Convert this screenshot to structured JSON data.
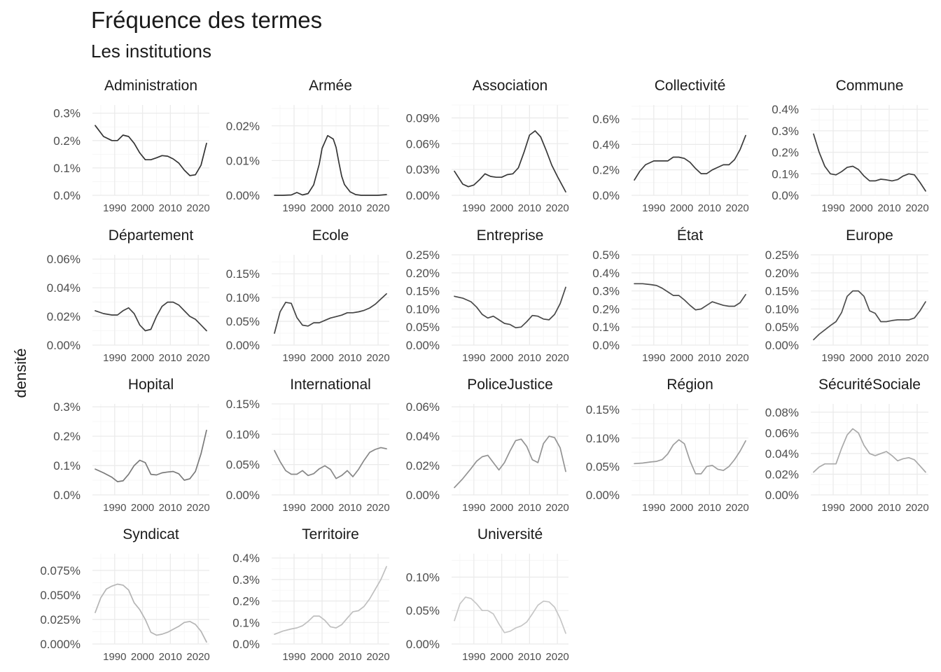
{
  "title": "Fréquence des termes",
  "subtitle": "Les institutions",
  "ylabel": "densité",
  "chart_data": {
    "type": "line",
    "title": "Fréquence des termes",
    "subtitle": "Les institutions",
    "xlabel": "",
    "ylabel": "densité",
    "xlim": [
      1982,
      2024
    ],
    "x_ticks": [
      1990,
      2000,
      2010,
      2020
    ],
    "grid": true,
    "legend": "none",
    "panels": [
      {
        "name": "Administration",
        "color": "#333333",
        "y_ticks": [
          0,
          0.1,
          0.2,
          0.3
        ],
        "y_tick_labels": [
          "0.0%",
          "0.1%",
          "0.2%",
          "0.3%"
        ],
        "ylim": [
          0,
          0.33
        ],
        "x": [
          1983,
          1986,
          1989,
          1991,
          1993,
          1995,
          1997,
          1999,
          2001,
          2003,
          2005,
          2007,
          2009,
          2011,
          2013,
          2015,
          2017,
          2019,
          2021,
          2023
        ],
        "y": [
          0.255,
          0.215,
          0.2,
          0.2,
          0.22,
          0.215,
          0.19,
          0.155,
          0.13,
          0.13,
          0.137,
          0.145,
          0.143,
          0.133,
          0.118,
          0.092,
          0.072,
          0.075,
          0.11,
          0.19
        ]
      },
      {
        "name": "Armée",
        "color": "#353535",
        "y_ticks": [
          0,
          0.01,
          0.02
        ],
        "y_tick_labels": [
          "0.00%",
          "0.01%",
          "0.02%"
        ],
        "ylim": [
          0,
          0.026
        ],
        "x": [
          1983,
          1986,
          1989,
          1991,
          1993,
          1995,
          1997,
          1999,
          2000,
          2002,
          2004,
          2005,
          2006,
          2007,
          2008,
          2010,
          2012,
          2014,
          2016,
          2018,
          2020,
          2023
        ],
        "y": [
          0,
          0,
          0.0001,
          0.0008,
          0.0001,
          0.0005,
          0.003,
          0.009,
          0.0135,
          0.0172,
          0.0162,
          0.0138,
          0.0095,
          0.0055,
          0.0031,
          0.001,
          0.0002,
          0,
          0,
          0,
          0,
          0.0002
        ]
      },
      {
        "name": "Association",
        "color": "#383838",
        "y_ticks": [
          0,
          0.03,
          0.06,
          0.09
        ],
        "y_tick_labels": [
          "0.00%",
          "0.03%",
          "0.06%",
          "0.09%"
        ],
        "ylim": [
          0,
          0.105
        ],
        "x": [
          1983,
          1986,
          1988,
          1990,
          1992,
          1994,
          1996,
          1998,
          2000,
          2002,
          2004,
          2006,
          2008,
          2010,
          2012,
          2014,
          2016,
          2018,
          2020,
          2023
        ],
        "y": [
          0.028,
          0.013,
          0.01,
          0.012,
          0.018,
          0.025,
          0.022,
          0.021,
          0.021,
          0.024,
          0.025,
          0.032,
          0.05,
          0.07,
          0.075,
          0.068,
          0.052,
          0.035,
          0.022,
          0.004
        ]
      },
      {
        "name": "Collectivité",
        "color": "#3b3b3b",
        "y_ticks": [
          0,
          0.2,
          0.4,
          0.6
        ],
        "y_tick_labels": [
          "0.0%",
          "0.2%",
          "0.4%",
          "0.6%"
        ],
        "ylim": [
          0,
          0.71
        ],
        "x": [
          1983,
          1985,
          1987,
          1990,
          1993,
          1995,
          1997,
          1999,
          2001,
          2003,
          2005,
          2007,
          2009,
          2011,
          2013,
          2015,
          2017,
          2019,
          2021,
          2023
        ],
        "y": [
          0.12,
          0.19,
          0.24,
          0.27,
          0.27,
          0.27,
          0.3,
          0.3,
          0.29,
          0.26,
          0.21,
          0.17,
          0.17,
          0.2,
          0.22,
          0.24,
          0.24,
          0.28,
          0.36,
          0.47
        ]
      },
      {
        "name": "Commune",
        "color": "#3e3e3e",
        "y_ticks": [
          0,
          0.1,
          0.2,
          0.3,
          0.4
        ],
        "y_tick_labels": [
          "0.0%",
          "0.1%",
          "0.2%",
          "0.3%",
          "0.4%"
        ],
        "ylim": [
          0,
          0.42
        ],
        "x": [
          1983,
          1985,
          1987,
          1989,
          1991,
          1993,
          1995,
          1997,
          1999,
          2001,
          2003,
          2005,
          2007,
          2009,
          2011,
          2013,
          2015,
          2017,
          2019,
          2021,
          2023
        ],
        "y": [
          0.285,
          0.2,
          0.135,
          0.1,
          0.095,
          0.11,
          0.13,
          0.135,
          0.12,
          0.09,
          0.067,
          0.067,
          0.075,
          0.072,
          0.067,
          0.073,
          0.09,
          0.1,
          0.095,
          0.06,
          0.02
        ]
      },
      {
        "name": "Département",
        "color": "#414141",
        "y_ticks": [
          0,
          0.02,
          0.04,
          0.06
        ],
        "y_tick_labels": [
          "0.00%",
          "0.02%",
          "0.04%",
          "0.06%"
        ],
        "ylim": [
          0,
          0.063
        ],
        "x": [
          1983,
          1986,
          1989,
          1991,
          1993,
          1995,
          1997,
          1999,
          2001,
          2003,
          2005,
          2007,
          2009,
          2011,
          2013,
          2015,
          2017,
          2019,
          2021,
          2023
        ],
        "y": [
          0.024,
          0.022,
          0.021,
          0.021,
          0.024,
          0.026,
          0.022,
          0.014,
          0.01,
          0.011,
          0.02,
          0.027,
          0.03,
          0.03,
          0.028,
          0.024,
          0.02,
          0.018,
          0.014,
          0.01
        ]
      },
      {
        "name": "Ecole",
        "color": "#444444",
        "y_ticks": [
          0,
          0.05,
          0.1,
          0.15
        ],
        "y_tick_labels": [
          "0.00%",
          "0.05%",
          "0.10%",
          "0.15%"
        ],
        "ylim": [
          0,
          0.19
        ],
        "x": [
          1983,
          1985,
          1987,
          1989,
          1991,
          1993,
          1995,
          1997,
          1999,
          2001,
          2003,
          2005,
          2007,
          2009,
          2011,
          2013,
          2015,
          2017,
          2019,
          2021,
          2023
        ],
        "y": [
          0.025,
          0.07,
          0.09,
          0.088,
          0.058,
          0.042,
          0.04,
          0.047,
          0.047,
          0.052,
          0.057,
          0.06,
          0.063,
          0.068,
          0.068,
          0.07,
          0.073,
          0.078,
          0.086,
          0.097,
          0.108
        ]
      },
      {
        "name": "Entreprise",
        "color": "#484848",
        "y_ticks": [
          0,
          0.05,
          0.1,
          0.15,
          0.2,
          0.25
        ],
        "y_tick_labels": [
          "0.00%",
          "0.05%",
          "0.10%",
          "0.15%",
          "0.20%",
          "0.25%"
        ],
        "ylim": [
          0,
          0.25
        ],
        "x": [
          1983,
          1986,
          1989,
          1991,
          1993,
          1995,
          1997,
          1999,
          2001,
          2003,
          2005,
          2007,
          2009,
          2011,
          2013,
          2015,
          2017,
          2019,
          2021,
          2023
        ],
        "y": [
          0.135,
          0.13,
          0.12,
          0.105,
          0.085,
          0.075,
          0.08,
          0.07,
          0.06,
          0.057,
          0.048,
          0.05,
          0.065,
          0.082,
          0.08,
          0.072,
          0.07,
          0.085,
          0.115,
          0.16
        ]
      },
      {
        "name": "État",
        "color": "#4b4b4b",
        "y_ticks": [
          0,
          0.1,
          0.2,
          0.3,
          0.4,
          0.5
        ],
        "y_tick_labels": [
          "0.0%",
          "0.1%",
          "0.2%",
          "0.3%",
          "0.4%",
          "0.5%"
        ],
        "ylim": [
          0,
          0.5
        ],
        "x": [
          1983,
          1986,
          1989,
          1991,
          1993,
          1995,
          1997,
          1999,
          2001,
          2003,
          2005,
          2007,
          2009,
          2011,
          2013,
          2015,
          2017,
          2019,
          2021,
          2023
        ],
        "y": [
          0.34,
          0.34,
          0.335,
          0.33,
          0.315,
          0.295,
          0.275,
          0.275,
          0.25,
          0.22,
          0.195,
          0.2,
          0.22,
          0.24,
          0.23,
          0.22,
          0.215,
          0.215,
          0.235,
          0.28
        ]
      },
      {
        "name": "Europe",
        "color": "#4e4e4e",
        "y_ticks": [
          0,
          0.05,
          0.1,
          0.15,
          0.2,
          0.25
        ],
        "y_tick_labels": [
          "0.00%",
          "0.05%",
          "0.10%",
          "0.15%",
          "0.20%",
          "0.25%"
        ],
        "ylim": [
          0,
          0.25
        ],
        "x": [
          1983,
          1985,
          1987,
          1989,
          1991,
          1993,
          1995,
          1997,
          1999,
          2001,
          2003,
          2005,
          2007,
          2009,
          2011,
          2013,
          2015,
          2017,
          2019,
          2021,
          2023
        ],
        "y": [
          0.015,
          0.03,
          0.042,
          0.054,
          0.065,
          0.09,
          0.135,
          0.15,
          0.15,
          0.135,
          0.095,
          0.088,
          0.065,
          0.065,
          0.068,
          0.07,
          0.07,
          0.07,
          0.075,
          0.095,
          0.12
        ]
      },
      {
        "name": "Hopital",
        "color": "#7a7a7a",
        "y_ticks": [
          0,
          0.1,
          0.2,
          0.3
        ],
        "y_tick_labels": [
          "0.0%",
          "0.1%",
          "0.2%",
          "0.3%"
        ],
        "ylim": [
          0,
          0.31
        ],
        "x": [
          1983,
          1986,
          1989,
          1991,
          1993,
          1995,
          1997,
          1999,
          2001,
          2003,
          2005,
          2007,
          2009,
          2011,
          2013,
          2015,
          2017,
          2019,
          2021,
          2023
        ],
        "y": [
          0.088,
          0.075,
          0.06,
          0.045,
          0.048,
          0.07,
          0.1,
          0.118,
          0.11,
          0.07,
          0.068,
          0.075,
          0.078,
          0.08,
          0.072,
          0.05,
          0.055,
          0.08,
          0.14,
          0.22
        ]
      },
      {
        "name": "International",
        "color": "#888888",
        "y_ticks": [
          0,
          0.05,
          0.1,
          0.15
        ],
        "y_tick_labels": [
          "0.00%",
          "0.05%",
          "0.10%",
          "0.15%"
        ],
        "ylim": [
          0,
          0.15
        ],
        "x": [
          1983,
          1985,
          1987,
          1989,
          1991,
          1993,
          1995,
          1997,
          1999,
          2001,
          2003,
          2005,
          2007,
          2009,
          2011,
          2013,
          2015,
          2017,
          2019,
          2021,
          2023
        ],
        "y": [
          0.073,
          0.055,
          0.04,
          0.034,
          0.034,
          0.04,
          0.032,
          0.035,
          0.043,
          0.048,
          0.042,
          0.027,
          0.032,
          0.04,
          0.03,
          0.042,
          0.057,
          0.07,
          0.075,
          0.078,
          0.076
        ]
      },
      {
        "name": "PoliceJustice",
        "color": "#939393",
        "y_ticks": [
          0,
          0.02,
          0.04,
          0.06
        ],
        "y_tick_labels": [
          "0.00%",
          "0.02%",
          "0.04%",
          "0.06%"
        ],
        "ylim": [
          0,
          0.062
        ],
        "x": [
          1983,
          1986,
          1989,
          1991,
          1993,
          1995,
          1997,
          1999,
          2001,
          2003,
          2005,
          2007,
          2009,
          2011,
          2013,
          2015,
          2017,
          2019,
          2021,
          2023
        ],
        "y": [
          0.005,
          0.011,
          0.018,
          0.023,
          0.026,
          0.027,
          0.022,
          0.017,
          0.022,
          0.03,
          0.037,
          0.038,
          0.033,
          0.024,
          0.022,
          0.035,
          0.04,
          0.039,
          0.032,
          0.016
        ]
      },
      {
        "name": "Région",
        "color": "#9e9e9e",
        "y_ticks": [
          0,
          0.05,
          0.1,
          0.15
        ],
        "y_tick_labels": [
          "0.00%",
          "0.05%",
          "0.10%",
          "0.15%"
        ],
        "ylim": [
          0,
          0.16
        ],
        "x": [
          1983,
          1986,
          1989,
          1991,
          1993,
          1995,
          1997,
          1999,
          2001,
          2003,
          2005,
          2007,
          2009,
          2011,
          2013,
          2015,
          2017,
          2019,
          2021,
          2023
        ],
        "y": [
          0.055,
          0.056,
          0.058,
          0.059,
          0.062,
          0.072,
          0.088,
          0.097,
          0.09,
          0.06,
          0.037,
          0.037,
          0.05,
          0.052,
          0.045,
          0.043,
          0.05,
          0.062,
          0.077,
          0.095
        ]
      },
      {
        "name": "SécuritéSociale",
        "color": "#a9a9a9",
        "y_ticks": [
          0,
          0.02,
          0.04,
          0.06,
          0.08
        ],
        "y_tick_labels": [
          "0.00%",
          "0.02%",
          "0.04%",
          "0.06%",
          "0.08%"
        ],
        "ylim": [
          0,
          0.088
        ],
        "x": [
          1983,
          1985,
          1987,
          1989,
          1991,
          1993,
          1995,
          1997,
          1999,
          2001,
          2003,
          2005,
          2007,
          2009,
          2011,
          2013,
          2015,
          2017,
          2019,
          2021,
          2023
        ],
        "y": [
          0.022,
          0.027,
          0.03,
          0.03,
          0.03,
          0.045,
          0.058,
          0.064,
          0.06,
          0.048,
          0.04,
          0.038,
          0.04,
          0.042,
          0.038,
          0.033,
          0.035,
          0.036,
          0.034,
          0.028,
          0.022
        ]
      },
      {
        "name": "Syndicat",
        "color": "#b5b5b5",
        "y_ticks": [
          0,
          0.025,
          0.05,
          0.075
        ],
        "y_tick_labels": [
          "0.000%",
          "0.025%",
          "0.050%",
          "0.075%"
        ],
        "ylim": [
          0,
          0.092
        ],
        "x": [
          1983,
          1985,
          1987,
          1989,
          1991,
          1993,
          1995,
          1997,
          1999,
          2001,
          2003,
          2005,
          2007,
          2009,
          2011,
          2013,
          2015,
          2017,
          2019,
          2021,
          2023
        ],
        "y": [
          0.032,
          0.047,
          0.056,
          0.059,
          0.061,
          0.06,
          0.055,
          0.042,
          0.035,
          0.025,
          0.012,
          0.009,
          0.01,
          0.012,
          0.015,
          0.018,
          0.022,
          0.023,
          0.02,
          0.013,
          0.002
        ]
      },
      {
        "name": "Territoire",
        "color": "#bfbfbf",
        "y_ticks": [
          0,
          0.1,
          0.2,
          0.3,
          0.4
        ],
        "y_tick_labels": [
          "0.0%",
          "0.1%",
          "0.2%",
          "0.3%",
          "0.4%"
        ],
        "ylim": [
          0,
          0.42
        ],
        "x": [
          1983,
          1986,
          1989,
          1991,
          1993,
          1995,
          1997,
          1999,
          2001,
          2003,
          2005,
          2007,
          2009,
          2011,
          2013,
          2015,
          2017,
          2019,
          2021,
          2023
        ],
        "y": [
          0.045,
          0.06,
          0.07,
          0.075,
          0.085,
          0.105,
          0.13,
          0.13,
          0.11,
          0.08,
          0.075,
          0.09,
          0.12,
          0.15,
          0.155,
          0.175,
          0.21,
          0.255,
          0.3,
          0.36
        ]
      },
      {
        "name": "Université",
        "color": "#c6c6c6",
        "y_ticks": [
          0,
          0.05,
          0.1
        ],
        "y_tick_labels": [
          "0.00%",
          "0.05%",
          "0.10%"
        ],
        "ylim": [
          0,
          0.135
        ],
        "x": [
          1983,
          1985,
          1987,
          1989,
          1991,
          1993,
          1995,
          1997,
          1999,
          2001,
          2003,
          2005,
          2007,
          2009,
          2011,
          2013,
          2015,
          2017,
          2019,
          2021,
          2023
        ],
        "y": [
          0.035,
          0.06,
          0.07,
          0.068,
          0.06,
          0.05,
          0.05,
          0.045,
          0.03,
          0.017,
          0.019,
          0.024,
          0.027,
          0.033,
          0.045,
          0.058,
          0.064,
          0.063,
          0.055,
          0.038,
          0.016
        ]
      }
    ]
  }
}
